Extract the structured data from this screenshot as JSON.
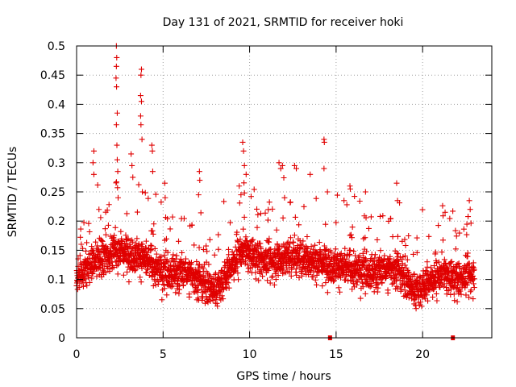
{
  "chart_data": {
    "type": "scatter",
    "title": "Day 131 of 2021, SRMTID for receiver hoki",
    "xlabel": "GPS time / hours",
    "ylabel": "SRMTID / TECUs",
    "xlim": [
      0,
      24
    ],
    "ylim": [
      0,
      0.5
    ],
    "xticks": [
      0,
      5,
      10,
      15,
      20
    ],
    "xtick_labels": [
      "0",
      "5",
      "10",
      "15",
      "20"
    ],
    "yticks": [
      0,
      0.05,
      0.1,
      0.15,
      0.2,
      0.25,
      0.3,
      0.35,
      0.4,
      0.45,
      0.5
    ],
    "ytick_labels": [
      "0",
      "0.05",
      "0.1",
      "0.15",
      "0.2",
      "0.25",
      "0.3",
      "0.35",
      "0.4",
      "0.45",
      "0.5"
    ],
    "grid": true,
    "marker": "+",
    "marker_color": "#e00000",
    "time_range": [
      0,
      23
    ],
    "series_note": "Dense cloud of SRMTID samples between about 0.02 and 0.33 TECU over 0-23 h, with spikes near 2.3 h up to 0.5",
    "envelope": [
      {
        "x": 0.0,
        "y": 0.1
      },
      {
        "x": 1.0,
        "y": 0.13
      },
      {
        "x": 2.3,
        "y": 0.15
      },
      {
        "x": 3.7,
        "y": 0.14
      },
      {
        "x": 5.0,
        "y": 0.11
      },
      {
        "x": 6.5,
        "y": 0.11
      },
      {
        "x": 8.0,
        "y": 0.08
      },
      {
        "x": 9.5,
        "y": 0.15
      },
      {
        "x": 11.0,
        "y": 0.13
      },
      {
        "x": 12.5,
        "y": 0.14
      },
      {
        "x": 14.0,
        "y": 0.13
      },
      {
        "x": 15.5,
        "y": 0.12
      },
      {
        "x": 17.0,
        "y": 0.11
      },
      {
        "x": 18.5,
        "y": 0.12
      },
      {
        "x": 19.5,
        "y": 0.08
      },
      {
        "x": 21.0,
        "y": 0.11
      },
      {
        "x": 22.0,
        "y": 0.1
      },
      {
        "x": 23.0,
        "y": 0.11
      }
    ],
    "spikes": [
      {
        "x": 1.0,
        "y": 0.32
      },
      {
        "x": 0.95,
        "y": 0.3
      },
      {
        "x": 1.0,
        "y": 0.28
      },
      {
        "x": 2.3,
        "y": 0.5
      },
      {
        "x": 2.32,
        "y": 0.48
      },
      {
        "x": 2.3,
        "y": 0.465
      },
      {
        "x": 2.28,
        "y": 0.445
      },
      {
        "x": 2.31,
        "y": 0.43
      },
      {
        "x": 2.35,
        "y": 0.385
      },
      {
        "x": 2.3,
        "y": 0.365
      },
      {
        "x": 2.33,
        "y": 0.33
      },
      {
        "x": 2.35,
        "y": 0.305
      },
      {
        "x": 2.38,
        "y": 0.285
      },
      {
        "x": 2.4,
        "y": 0.24
      },
      {
        "x": 3.15,
        "y": 0.315
      },
      {
        "x": 3.2,
        "y": 0.295
      },
      {
        "x": 3.25,
        "y": 0.275
      },
      {
        "x": 3.75,
        "y": 0.46
      },
      {
        "x": 3.72,
        "y": 0.45
      },
      {
        "x": 3.7,
        "y": 0.415
      },
      {
        "x": 3.75,
        "y": 0.405
      },
      {
        "x": 3.7,
        "y": 0.38
      },
      {
        "x": 3.72,
        "y": 0.365
      },
      {
        "x": 3.78,
        "y": 0.34
      },
      {
        "x": 3.8,
        "y": 0.25
      },
      {
        "x": 4.35,
        "y": 0.33
      },
      {
        "x": 4.38,
        "y": 0.32
      },
      {
        "x": 4.4,
        "y": 0.285
      },
      {
        "x": 5.1,
        "y": 0.265
      },
      {
        "x": 5.12,
        "y": 0.24
      },
      {
        "x": 7.1,
        "y": 0.285
      },
      {
        "x": 7.12,
        "y": 0.27
      },
      {
        "x": 7.05,
        "y": 0.245
      },
      {
        "x": 9.4,
        "y": 0.26
      },
      {
        "x": 9.5,
        "y": 0.245
      },
      {
        "x": 9.7,
        "y": 0.295
      },
      {
        "x": 9.6,
        "y": 0.335
      },
      {
        "x": 9.65,
        "y": 0.32
      },
      {
        "x": 9.8,
        "y": 0.28
      },
      {
        "x": 11.7,
        "y": 0.3
      },
      {
        "x": 11.8,
        "y": 0.29
      },
      {
        "x": 11.9,
        "y": 0.295
      },
      {
        "x": 12.6,
        "y": 0.295
      },
      {
        "x": 12.7,
        "y": 0.29
      },
      {
        "x": 13.5,
        "y": 0.28
      },
      {
        "x": 14.3,
        "y": 0.34
      },
      {
        "x": 14.32,
        "y": 0.335
      },
      {
        "x": 14.3,
        "y": 0.29
      },
      {
        "x": 14.5,
        "y": 0.25
      },
      {
        "x": 15.8,
        "y": 0.26
      },
      {
        "x": 15.82,
        "y": 0.255
      },
      {
        "x": 16.7,
        "y": 0.25
      },
      {
        "x": 18.5,
        "y": 0.265
      },
      {
        "x": 18.55,
        "y": 0.235
      },
      {
        "x": 21.3,
        "y": 0.215
      },
      {
        "x": 22.7,
        "y": 0.235
      },
      {
        "x": 22.75,
        "y": 0.22
      }
    ],
    "zero_markers": [
      {
        "x": 14.65,
        "y": 0
      },
      {
        "x": 21.75,
        "y": 0
      }
    ]
  }
}
